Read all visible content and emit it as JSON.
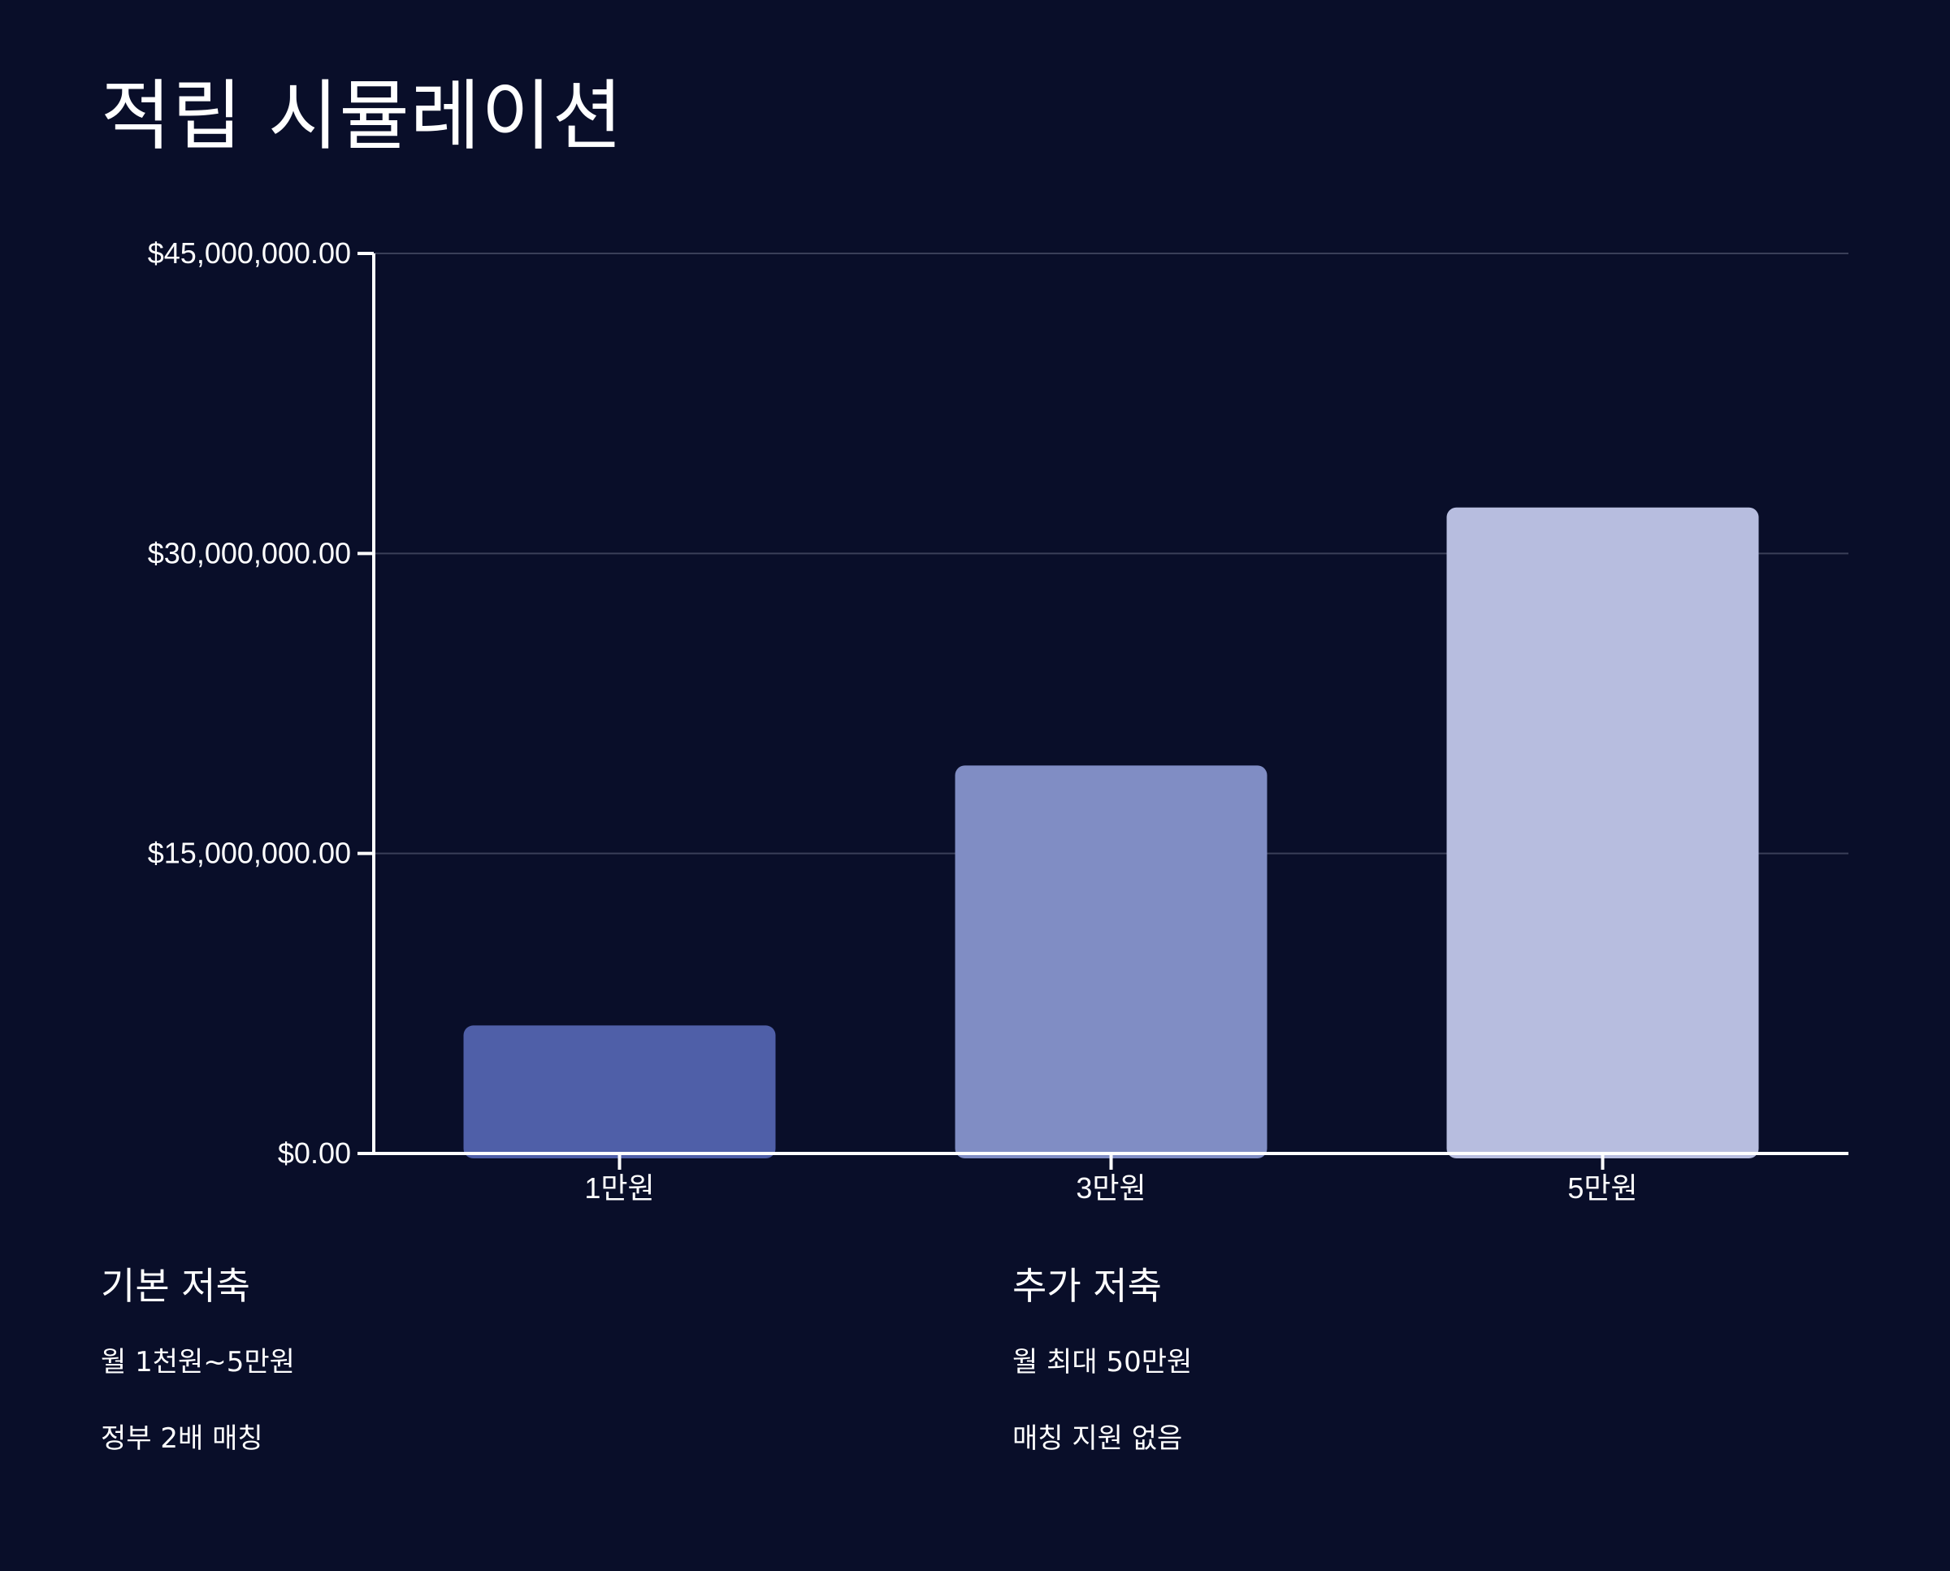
{
  "page": {
    "title": "적립 시뮬레이션"
  },
  "chart_data": {
    "type": "bar",
    "categories": [
      "1만원",
      "3만원",
      "5만원"
    ],
    "values": [
      6400000,
      19400000,
      32300000
    ],
    "colors": [
      "#4f5fa8",
      "#808dc4",
      "#b7bddf"
    ],
    "title": "",
    "xlabel": "",
    "ylabel": "",
    "ylim": [
      0,
      45000000
    ],
    "yticks": [
      0,
      15000000,
      30000000,
      45000000
    ],
    "ytick_labels": [
      "$0.00",
      "$15,000,000.00",
      "$30,000,000.00",
      "$45,000,000.00"
    ],
    "grid": true,
    "legend": "none"
  },
  "info": {
    "basic": {
      "heading": "기본 저축",
      "items": [
        "월 1천원~5만원",
        "정부 2배 매칭"
      ]
    },
    "extra": {
      "heading": "추가 저축",
      "items": [
        "월 최대 50만원",
        "매칭 지원 없음"
      ]
    }
  },
  "theme": {
    "background": "#090e29",
    "text": "#ffffff",
    "grid": "#3a3f58",
    "axis": "#ffffff"
  }
}
